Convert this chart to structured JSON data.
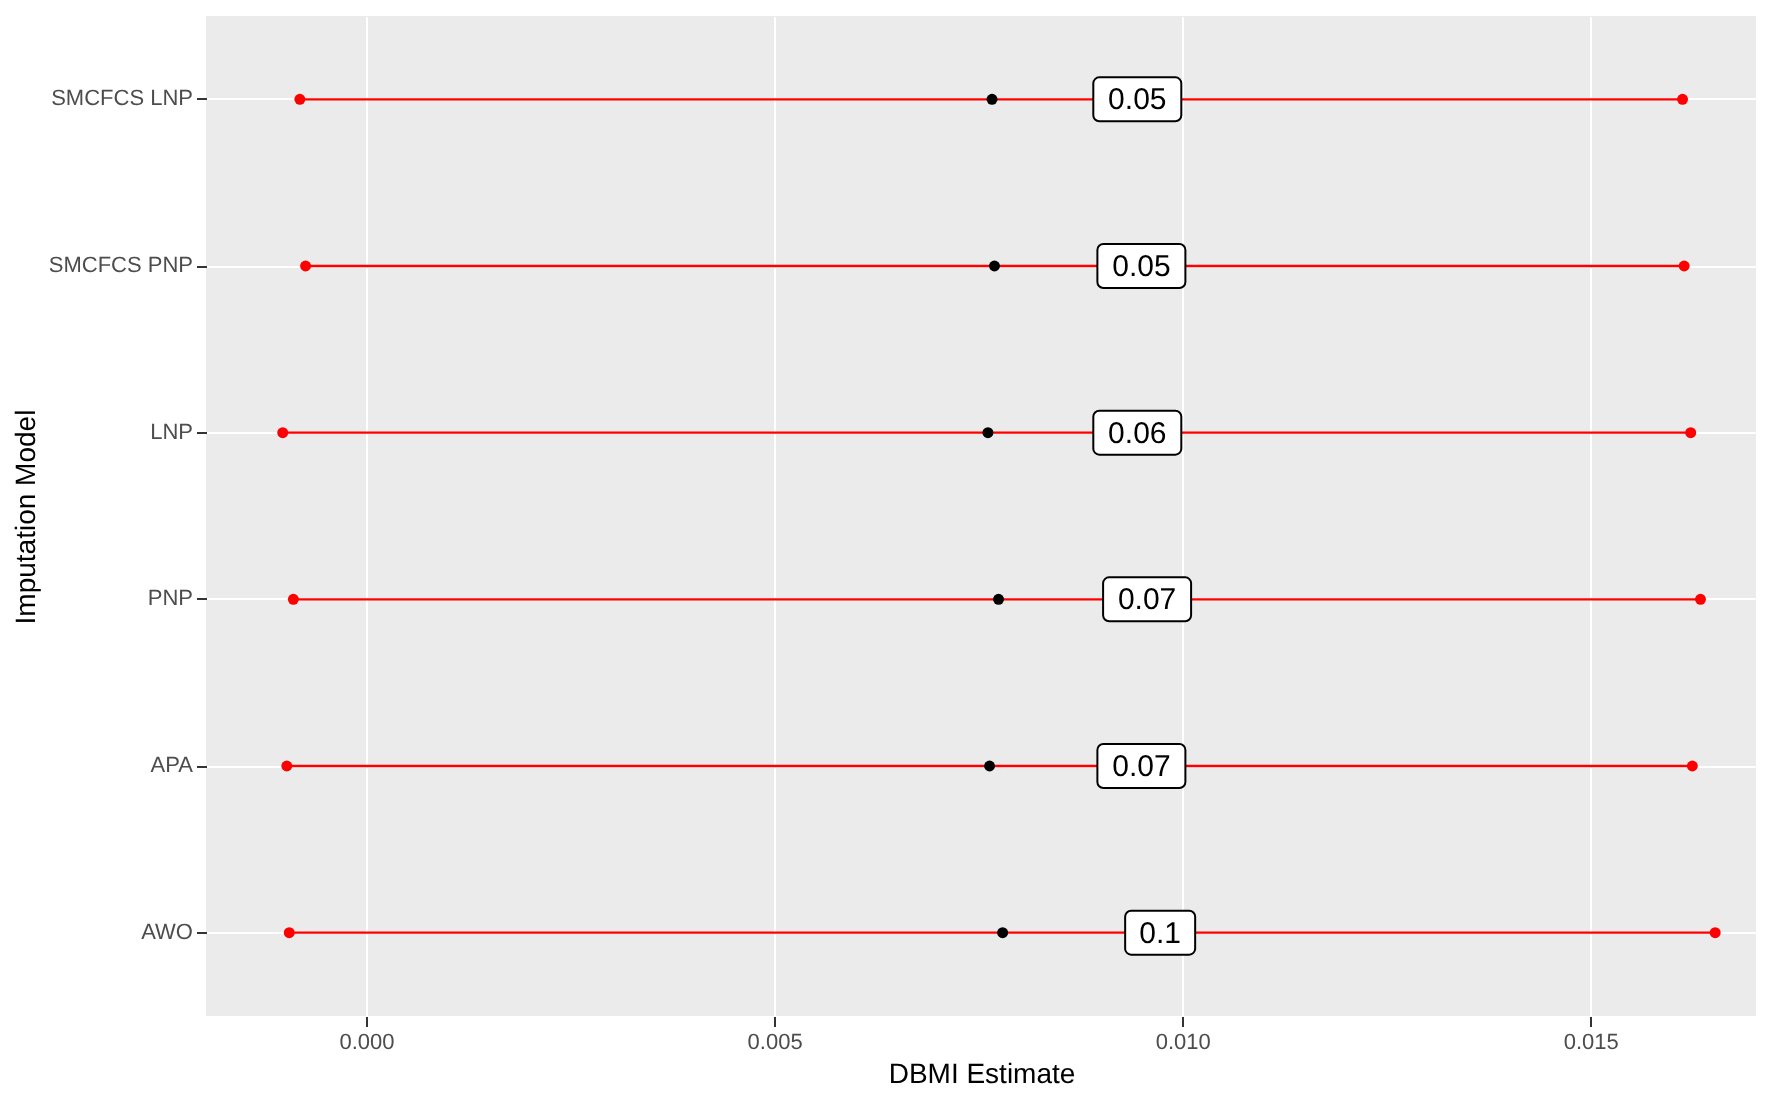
{
  "chart_data": {
    "type": "scatter",
    "orientation": "horizontal",
    "xlabel": "DBMI Estimate",
    "ylabel": "Imputation Model",
    "categories": [
      "SMCFCS LNP",
      "SMCFCS PNP",
      "LNP",
      "PNP",
      "APA",
      "AWO"
    ],
    "series": [
      {
        "color": "#ff0000",
        "marker": "circle",
        "values": [
          -0.00081,
          -0.00074,
          -0.00102,
          -0.00089,
          -0.00097,
          -0.00094
        ]
      },
      {
        "color": "#ff0000",
        "marker": "circle",
        "values": [
          0.01613,
          0.01615,
          0.01623,
          0.01635,
          0.01625,
          0.01653
        ]
      },
      {
        "color": "#000000",
        "marker": "circle",
        "values": [
          0.00767,
          0.0077,
          0.00762,
          0.00775,
          0.00764,
          0.0078
        ]
      }
    ],
    "annotations": [
      {
        "text": "0.05",
        "x": 0.00945,
        "y": "SMCFCS LNP"
      },
      {
        "text": "0.05",
        "x": 0.0095,
        "y": "SMCFCS PNP"
      },
      {
        "text": "0.06",
        "x": 0.00945,
        "y": "LNP"
      },
      {
        "text": "0.07",
        "x": 0.00957,
        "y": "PNP"
      },
      {
        "text": "0.07",
        "x": 0.0095,
        "y": "APA"
      },
      {
        "text": "0.1",
        "x": 0.00973,
        "y": "AWO"
      }
    ],
    "xlim": [
      -0.00196,
      0.01703
    ],
    "xticks": [
      {
        "value": 0,
        "label": "0.000"
      },
      {
        "value": 0.005,
        "label": "0.005"
      },
      {
        "value": 0.01,
        "label": "0.010"
      },
      {
        "value": 0.015,
        "label": "0.015"
      }
    ],
    "grid": true
  }
}
